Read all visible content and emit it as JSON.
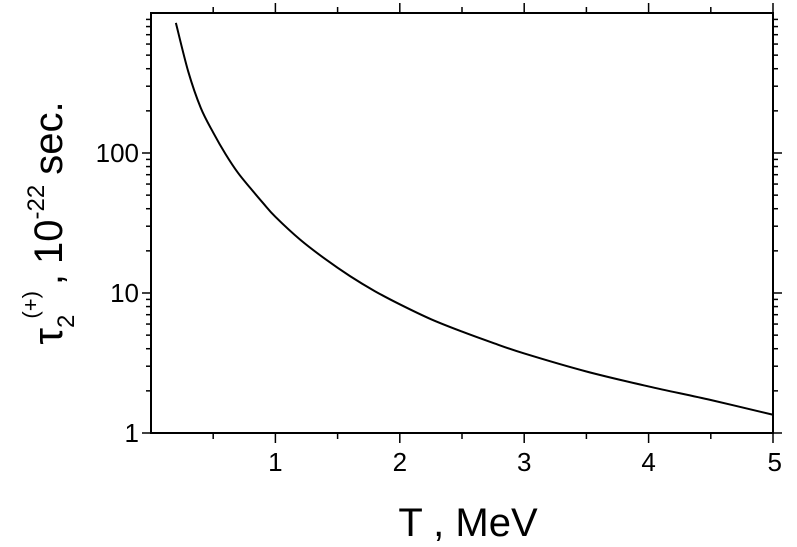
{
  "chart_data": {
    "type": "line",
    "title": "",
    "xlabel": "T , MeV",
    "ylabel": {
      "symbol": "τ",
      "subscript": "2",
      "superscript": "(+)",
      "separator": ",",
      "unit_base": "10",
      "unit_exponent": "-22",
      "unit_suffix": "sec."
    },
    "xlim": [
      0,
      5
    ],
    "ylim": [
      1,
      1000
    ],
    "yscale": "log",
    "grid": false,
    "legend": "none",
    "x_ticks": [
      {
        "value": 1,
        "label": "1"
      },
      {
        "value": 2,
        "label": "2"
      },
      {
        "value": 3,
        "label": "3"
      },
      {
        "value": 4,
        "label": "4"
      },
      {
        "value": 5,
        "label": "5"
      }
    ],
    "y_ticks": [
      {
        "value": 1,
        "label": "1"
      },
      {
        "value": 10,
        "label": "10"
      },
      {
        "value": 100,
        "label": "100"
      }
    ],
    "series": [
      {
        "color": "#000000",
        "x": [
          0.2,
          0.3,
          0.4,
          0.5,
          0.6,
          0.7,
          0.8,
          0.9,
          1.0,
          1.2,
          1.4,
          1.6,
          1.8,
          2.0,
          2.25,
          2.5,
          2.75,
          3.0,
          3.5,
          4.0,
          4.5,
          5.0
        ],
        "y": [
          850,
          380,
          210,
          140,
          98,
          72,
          56,
          44,
          35,
          24,
          17.5,
          13.2,
          10.3,
          8.3,
          6.5,
          5.3,
          4.4,
          3.7,
          2.75,
          2.15,
          1.72,
          1.35
        ]
      }
    ]
  }
}
